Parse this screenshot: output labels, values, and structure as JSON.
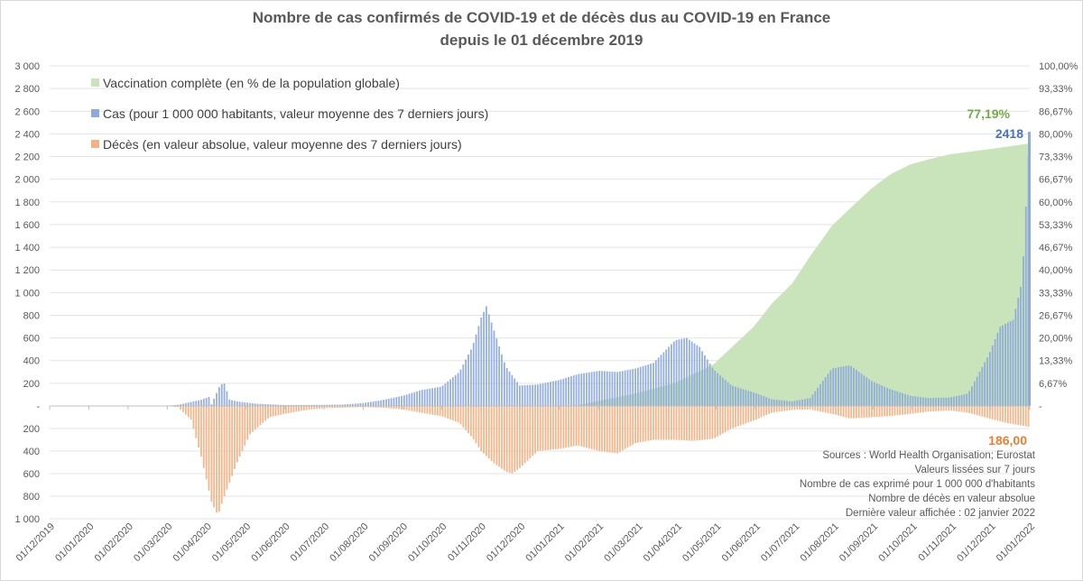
{
  "chart_data": {
    "type": "bar",
    "title": "Nombre de cas confirmés de COVID-19 et de décès dus au COVID-19 en France",
    "subtitle": "depuis le 01 décembre 2019",
    "x_start": "2019-12-01",
    "x_end": "2022-01-02",
    "x_tick_labels": [
      "01/12/2019",
      "01/01/2020",
      "01/02/2020",
      "01/03/2020",
      "01/04/2020",
      "01/05/2020",
      "01/06/2020",
      "01/07/2020",
      "01/08/2020",
      "01/09/2020",
      "01/10/2020",
      "01/11/2020",
      "01/12/2020",
      "01/01/2021",
      "01/02/2021",
      "01/03/2021",
      "01/04/2021",
      "01/05/2021",
      "01/06/2021",
      "01/07/2021",
      "01/08/2021",
      "01/09/2021",
      "01/10/2021",
      "01/11/2021",
      "01/12/2021",
      "01/01/2022"
    ],
    "y_left_ticks_upper": [
      "3 000",
      "2 800",
      "2 600",
      "2 400",
      "2 200",
      "2 000",
      "1 800",
      "1 600",
      "1 400",
      "1 200",
      "1 000",
      "800",
      "600",
      "400",
      "200"
    ],
    "y_left_zero_label": "-",
    "y_left_ticks_lower": [
      "200",
      "400",
      "600",
      "800",
      "1 000"
    ],
    "ylim_upper": [
      0,
      3000
    ],
    "ylim_lower": [
      0,
      1000
    ],
    "y_right_ticks": [
      "100,00%",
      "93,33%",
      "86,67%",
      "80,00%",
      "73,33%",
      "66,67%",
      "60,00%",
      "53,33%",
      "46,67%",
      "40,00%",
      "33,33%",
      "26,67%",
      "20,00%",
      "13,33%",
      "6,67%",
      "-"
    ],
    "ylim_right": [
      0,
      100
    ],
    "grid": true,
    "legend_position": "top-left",
    "series": [
      {
        "name": "Vaccination complète (en % de la population globale)",
        "kind": "area",
        "color": "#c9e3bb",
        "points": [
          [
            "2020-12-27",
            0
          ],
          [
            "2021-01-15",
            0.2
          ],
          [
            "2021-02-01",
            1.5
          ],
          [
            "2021-03-01",
            3.7
          ],
          [
            "2021-04-01",
            6.8
          ],
          [
            "2021-05-01",
            12.3
          ],
          [
            "2021-06-01",
            23.3
          ],
          [
            "2021-06-15",
            30.0
          ],
          [
            "2021-07-01",
            36.0
          ],
          [
            "2021-07-15",
            44.0
          ],
          [
            "2021-08-01",
            53.0
          ],
          [
            "2021-08-15",
            58.0
          ],
          [
            "2021-09-01",
            64.0
          ],
          [
            "2021-09-15",
            68.0
          ],
          [
            "2021-10-01",
            71.0
          ],
          [
            "2021-10-15",
            72.5
          ],
          [
            "2021-11-01",
            74.0
          ],
          [
            "2021-12-01",
            75.5
          ],
          [
            "2022-01-02",
            77.19
          ]
        ]
      },
      {
        "name": "Cas (pour 1 000 000 habitants, valeur moyenne des 7 derniers jours)",
        "kind": "bar",
        "color": "#8eaadb",
        "points": [
          [
            "2020-02-25",
            0
          ],
          [
            "2020-03-01",
            3
          ],
          [
            "2020-03-10",
            10
          ],
          [
            "2020-03-20",
            35
          ],
          [
            "2020-03-28",
            55
          ],
          [
            "2020-04-03",
            80
          ],
          [
            "2020-04-05",
            15
          ],
          [
            "2020-04-12",
            190
          ],
          [
            "2020-04-16",
            200
          ],
          [
            "2020-04-18",
            60
          ],
          [
            "2020-04-25",
            40
          ],
          [
            "2020-05-10",
            20
          ],
          [
            "2020-06-01",
            8
          ],
          [
            "2020-07-01",
            10
          ],
          [
            "2020-07-15",
            12
          ],
          [
            "2020-08-01",
            25
          ],
          [
            "2020-08-15",
            50
          ],
          [
            "2020-09-01",
            90
          ],
          [
            "2020-09-15",
            140
          ],
          [
            "2020-10-01",
            170
          ],
          [
            "2020-10-15",
            300
          ],
          [
            "2020-10-25",
            520
          ],
          [
            "2020-11-01",
            780
          ],
          [
            "2020-11-05",
            880
          ],
          [
            "2020-11-10",
            700
          ],
          [
            "2020-11-20",
            350
          ],
          [
            "2020-12-01",
            180
          ],
          [
            "2020-12-15",
            190
          ],
          [
            "2021-01-01",
            230
          ],
          [
            "2021-01-15",
            280
          ],
          [
            "2021-02-01",
            310
          ],
          [
            "2021-02-15",
            300
          ],
          [
            "2021-03-01",
            330
          ],
          [
            "2021-03-15",
            380
          ],
          [
            "2021-04-01",
            580
          ],
          [
            "2021-04-10",
            600
          ],
          [
            "2021-04-20",
            520
          ],
          [
            "2021-05-01",
            320
          ],
          [
            "2021-05-15",
            180
          ],
          [
            "2021-06-01",
            120
          ],
          [
            "2021-06-15",
            60
          ],
          [
            "2021-07-01",
            40
          ],
          [
            "2021-07-15",
            70
          ],
          [
            "2021-08-01",
            330
          ],
          [
            "2021-08-15",
            360
          ],
          [
            "2021-09-01",
            220
          ],
          [
            "2021-09-15",
            150
          ],
          [
            "2021-10-01",
            90
          ],
          [
            "2021-10-15",
            70
          ],
          [
            "2021-11-01",
            75
          ],
          [
            "2021-11-15",
            110
          ],
          [
            "2021-12-01",
            450
          ],
          [
            "2021-12-10",
            700
          ],
          [
            "2021-12-20",
            760
          ],
          [
            "2021-12-27",
            1100
          ],
          [
            "2022-01-02",
            2418
          ]
        ]
      },
      {
        "name": "Décès (en valeur absolue, valeur moyenne des 7 derniers jours)",
        "kind": "bar",
        "color": "#f4b183",
        "points": [
          [
            "2020-03-01",
            0
          ],
          [
            "2020-03-10",
            10
          ],
          [
            "2020-03-20",
            120
          ],
          [
            "2020-03-28",
            450
          ],
          [
            "2020-04-05",
            850
          ],
          [
            "2020-04-10",
            970
          ],
          [
            "2020-04-15",
            800
          ],
          [
            "2020-04-25",
            500
          ],
          [
            "2020-05-05",
            250
          ],
          [
            "2020-05-20",
            100
          ],
          [
            "2020-06-01",
            70
          ],
          [
            "2020-06-15",
            40
          ],
          [
            "2020-07-01",
            20
          ],
          [
            "2020-08-01",
            10
          ],
          [
            "2020-08-15",
            15
          ],
          [
            "2020-09-01",
            30
          ],
          [
            "2020-09-15",
            60
          ],
          [
            "2020-10-01",
            90
          ],
          [
            "2020-10-15",
            150
          ],
          [
            "2020-10-25",
            280
          ],
          [
            "2020-11-01",
            400
          ],
          [
            "2020-11-10",
            500
          ],
          [
            "2020-11-20",
            580
          ],
          [
            "2020-11-25",
            600
          ],
          [
            "2020-12-01",
            550
          ],
          [
            "2020-12-15",
            400
          ],
          [
            "2021-01-01",
            380
          ],
          [
            "2021-01-15",
            350
          ],
          [
            "2021-02-01",
            400
          ],
          [
            "2021-02-15",
            420
          ],
          [
            "2021-03-01",
            330
          ],
          [
            "2021-03-15",
            300
          ],
          [
            "2021-04-01",
            300
          ],
          [
            "2021-04-15",
            310
          ],
          [
            "2021-05-01",
            290
          ],
          [
            "2021-05-15",
            200
          ],
          [
            "2021-06-01",
            130
          ],
          [
            "2021-06-15",
            60
          ],
          [
            "2021-07-01",
            35
          ],
          [
            "2021-07-15",
            30
          ],
          [
            "2021-08-01",
            70
          ],
          [
            "2021-08-15",
            110
          ],
          [
            "2021-09-01",
            100
          ],
          [
            "2021-09-15",
            90
          ],
          [
            "2021-10-01",
            70
          ],
          [
            "2021-10-15",
            50
          ],
          [
            "2021-11-01",
            40
          ],
          [
            "2021-11-15",
            60
          ],
          [
            "2021-12-01",
            110
          ],
          [
            "2021-12-15",
            150
          ],
          [
            "2022-01-02",
            186
          ]
        ]
      }
    ],
    "annotations": {
      "last_vaccination": "77,19%",
      "last_cases": "2418",
      "last_deaths": "186,00"
    },
    "notes": [
      "Sources : World Health Organisation; Eurostat",
      "Valeurs lissées sur 7 jours",
      "Nombre de cas exprimé pour 1 000 000 d'habitants",
      "Nombre de décès en valeur absolue",
      "Dernière valeur affichée : 02 janvier 2022"
    ],
    "colors": {
      "vaccination": "#c9e3bb",
      "vaccination_label": "#70ad47",
      "cases": "#8eaadb",
      "cases_label": "#4472c4",
      "deaths": "#f4b183",
      "deaths_label": "#ed7d31"
    }
  }
}
